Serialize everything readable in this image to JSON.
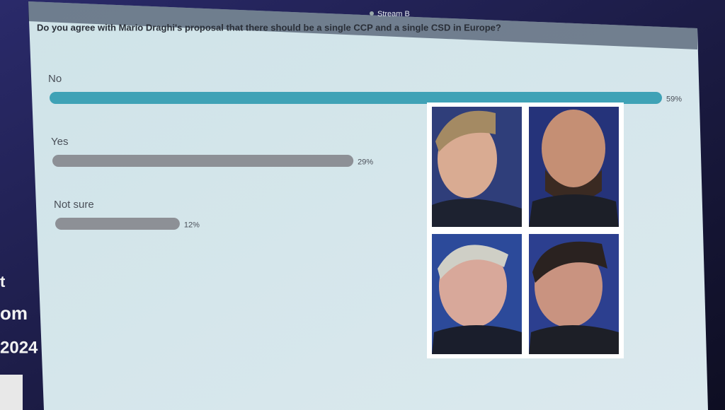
{
  "screen": {
    "stream": "Stream B",
    "side_text": [
      "t",
      "om",
      "2024"
    ]
  },
  "chart_data": {
    "type": "bar",
    "orientation": "horizontal",
    "title": "Do you agree with Mario Draghi's proposal that there should be a single CCP and a single CSD in Europe?",
    "categories": [
      "No",
      "Yes",
      "Not sure"
    ],
    "values": [
      59,
      29,
      12
    ],
    "value_labels": [
      "59%",
      "29%",
      "12%"
    ],
    "colors": [
      "#3fa2b6",
      "#8d9096",
      "#8d9096"
    ]
  }
}
